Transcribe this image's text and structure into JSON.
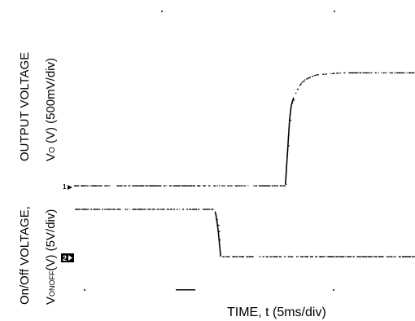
{
  "chart_data": {
    "type": "line",
    "title": "",
    "xlabel": "TIME, t (5ms/div)",
    "ylabel_top_line1": "OUTPUT VOLTAGE",
    "ylabel_top_line2_prefix": "V",
    "ylabel_top_line2_sub": "O",
    "ylabel_top_line2_suffix": " (V) (500mV/div)",
    "ylabel_bottom_line1": "On/Off VOLTAGE,",
    "ylabel_bottom_line2_prefix": "V",
    "ylabel_bottom_line2_sub": "ONOFF",
    "ylabel_bottom_line2_suffix": "(V) (5V/div)",
    "channel_markers": [
      "1",
      "2"
    ],
    "x_unit": "ms",
    "x_per_div": 5,
    "grid": false,
    "series": [
      {
        "name": "1",
        "unit": "V",
        "per_div": 0.5,
        "x": [
          0,
          24.5,
          24.8,
          25.0,
          25.2,
          25.5,
          25.8,
          26.2,
          26.6,
          27.2,
          28.0,
          29.0,
          30.0,
          31.0,
          34.0,
          38.0,
          44.0
        ],
        "y": [
          0,
          0,
          0.6,
          1.0,
          1.2,
          1.32,
          1.42,
          1.5,
          1.56,
          1.6,
          1.64,
          1.65,
          1.66,
          1.67,
          1.67,
          1.67,
          1.67
        ]
      },
      {
        "name": "2",
        "unit": "V",
        "per_div": 5,
        "x": [
          0,
          16.0,
          16.4,
          16.7,
          17.0,
          34.0,
          44.0
        ],
        "y": [
          7.0,
          7.0,
          6.6,
          4.0,
          0,
          0,
          0
        ]
      }
    ]
  }
}
